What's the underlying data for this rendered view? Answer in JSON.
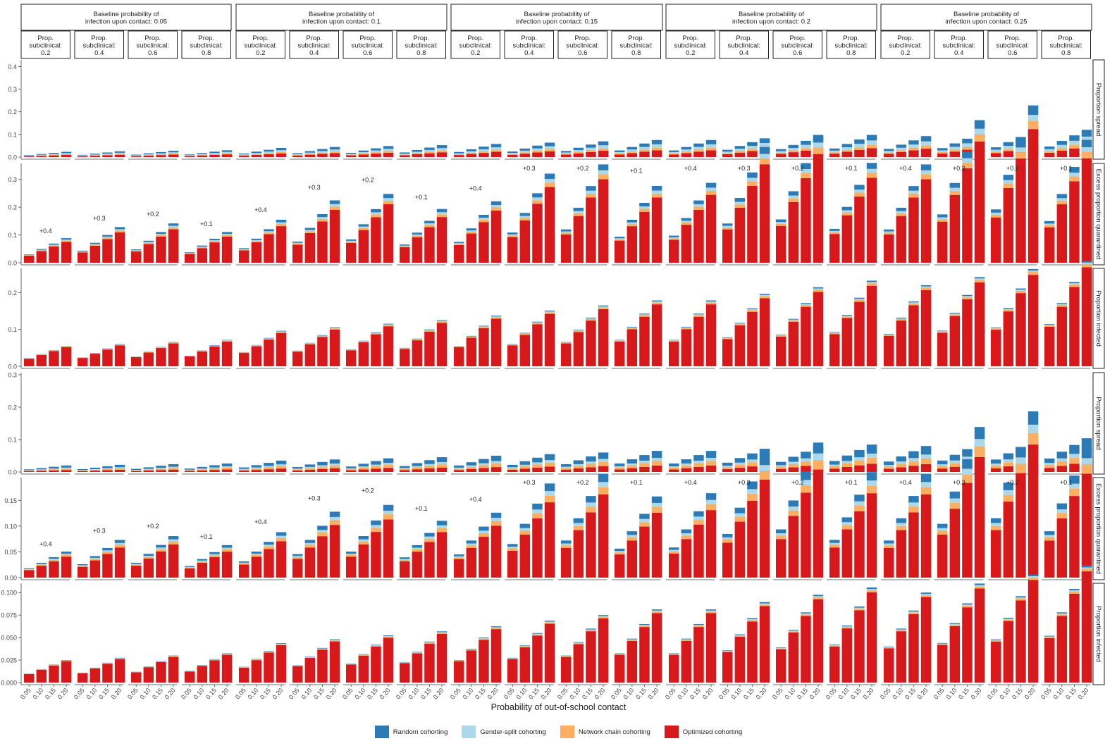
{
  "chart_data": {
    "type": "bar",
    "x_title": "Probability of out-of-school contact",
    "x_ticks": [
      "0.05",
      "0.10",
      "0.15",
      "0.20"
    ],
    "column_groups": [
      {
        "label": "Baseline probability of\ninfection upon contact: 0.05"
      },
      {
        "label": "Baseline probability of\ninfection upon contact: 0.1"
      },
      {
        "label": "Baseline probability of\ninfection upon contact: 0.15"
      },
      {
        "label": "Baseline probability of\ninfection upon contact: 0.2"
      },
      {
        "label": "Baseline probability of\ninfection upon contact: 0.25"
      }
    ],
    "sub_columns": [
      {
        "label": "Prop.\nsubclinical:\n0.2"
      },
      {
        "label": "Prop.\nsubclinical:\n0.4"
      },
      {
        "label": "Prop.\nsubclinical:\n0.6"
      },
      {
        "label": "Prop.\nsubclinical:\n0.8"
      }
    ],
    "series": [
      {
        "name": "Optimized cohorting",
        "color": "#d7191c"
      },
      {
        "name": "Network chain cohorting",
        "color": "#fdae61"
      },
      {
        "name": "Gender-split cohorting",
        "color": "#abd9e9"
      },
      {
        "name": "Random cohorting",
        "color": "#2c7bb6"
      }
    ],
    "legend_order": [
      "Random cohorting",
      "Gender-split cohorting",
      "Network chain cohorting",
      "Optimized cohorting"
    ],
    "rows": [
      {
        "strip": "Proportion spread",
        "ylim": [
          0,
          0.42
        ],
        "ticks": [
          0,
          0.1,
          0.2,
          0.3,
          0.4
        ],
        "tick_labels": [
          "0.0",
          "0.1",
          "0.2",
          "0.3",
          "0.4"
        ],
        "base": 0.009,
        "growth": 2.1,
        "shape": [
          0.4,
          0.15,
          0.2,
          0.25
        ],
        "bands": [
          0.0,
          0.0,
          0.0,
          0.0
        ]
      },
      {
        "strip": "Excess proportion quarantined",
        "ylim": [
          0,
          0.35
        ],
        "ticks": [
          0,
          0.1,
          0.2,
          0.3
        ],
        "tick_labels": [
          "0.0",
          "0.1",
          "0.2",
          "0.3"
        ],
        "base": 0.03,
        "growth": 2.6,
        "shape": [
          0.85,
          0.05,
          0.04,
          0.06
        ],
        "bands": [
          0.0,
          0.0,
          0.0,
          0.0
        ]
      },
      {
        "strip": "Proportion infected",
        "ylim": [
          0,
          0.26
        ],
        "ticks": [
          0,
          0.1,
          0.2
        ],
        "tick_labels": [
          "0.0",
          "0.1",
          "0.2"
        ],
        "base": 0.022,
        "growth": 2.0,
        "shape": [
          0.94,
          0.03,
          0.015,
          0.015
        ],
        "bands": [
          0.0,
          0.0,
          0.0,
          0.0
        ]
      },
      {
        "strip": "Proportion spread",
        "ylim": [
          0,
          0.3
        ],
        "ticks": [
          0,
          0.1,
          0.2,
          0.3
        ],
        "tick_labels": [
          "0.0",
          "0.1",
          "0.2",
          "0.3"
        ],
        "base": 0.008,
        "growth": 2.0,
        "shape": [
          0.3,
          0.22,
          0.15,
          0.33
        ],
        "bands": [
          0.0,
          0.0,
          0.0,
          0.0
        ]
      },
      {
        "strip": "Excess proportion quarantined",
        "ylim": [
          0,
          0.19
        ],
        "ticks": [
          0,
          0.05,
          0.1,
          0.15
        ],
        "tick_labels": [
          "0.00",
          "0.05",
          "0.10",
          "0.15"
        ],
        "base": 0.018,
        "growth": 2.4,
        "shape": [
          0.8,
          0.07,
          0.05,
          0.08
        ],
        "bands": [
          0.0,
          0.0,
          0.0,
          0.0
        ]
      },
      {
        "strip": "Proportion infected",
        "ylim": [
          0,
          0.108
        ],
        "ticks": [
          0,
          0.025,
          0.05,
          0.075,
          0.1
        ],
        "tick_labels": [
          "0.000",
          "0.025",
          "0.050",
          "0.075",
          "0.100"
        ],
        "base": 0.01,
        "growth": 2.0,
        "shape": [
          0.95,
          0.02,
          0.015,
          0.015
        ],
        "bands": [
          0.0,
          0.0,
          0.0,
          0.0
        ]
      }
    ],
    "annotations": {
      "rows": [
        1,
        4
      ],
      "labels": [
        "+0.4",
        "+0.3",
        "+0.2",
        "+0.1"
      ]
    },
    "legend_position": "bottom"
  }
}
